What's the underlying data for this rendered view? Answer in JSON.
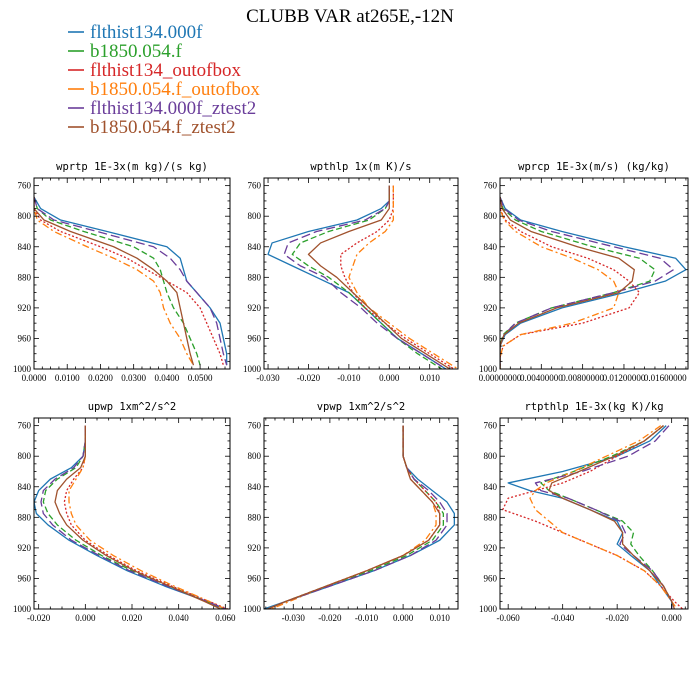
{
  "title": "CLUBB VAR at265E,-12N",
  "legend": [
    {
      "label": "flthist134.000f",
      "color": "#1f77b4",
      "dash": "solid"
    },
    {
      "label": "b1850.054.f",
      "color": "#2ca02c",
      "dash": "dashed"
    },
    {
      "label": "flthist134_outofbox",
      "color": "#d62728",
      "dash": "dotted"
    },
    {
      "label": "b1850.054.f_outofbox",
      "color": "#ff7f0e",
      "dash": "dashdot"
    },
    {
      "label": "flthist134.000f_ztest2",
      "color": "#6a3d9a",
      "dash": "longdash"
    },
    {
      "label": "b1850.054.f_ztest2",
      "color": "#a0522d",
      "dash": "solid"
    }
  ],
  "chart_data": [
    {
      "type": "line",
      "title": "wprtp  1E-3x(m kg)/(s kg)",
      "xlim": [
        0.0,
        0.059
      ],
      "ylim": [
        1000,
        750
      ],
      "yticks": [
        760,
        800,
        840,
        880,
        920,
        960,
        1000
      ],
      "xticks": [
        0.0,
        0.01,
        0.02,
        0.03,
        0.04,
        0.05
      ],
      "xticklabels": [
        "0.0000",
        "0.0100",
        "0.0200",
        "0.0300",
        "0.0400",
        "0.0500"
      ],
      "y": [
        775,
        790,
        805,
        820,
        840,
        855,
        870,
        885,
        900,
        920,
        940,
        960,
        980,
        995
      ],
      "series": [
        {
          "name": "flthist134.000f",
          "x": [
            0.0,
            0.002,
            0.008,
            0.022,
            0.04,
            0.044,
            0.045,
            0.046,
            0.049,
            0.053,
            0.056,
            0.057,
            0.058,
            0.058
          ]
        },
        {
          "name": "b1850.054.f",
          "x": [
            0.0,
            0.001,
            0.005,
            0.015,
            0.03,
            0.036,
            0.038,
            0.039,
            0.04,
            0.042,
            0.045,
            0.047,
            0.049,
            0.05
          ]
        },
        {
          "name": "flthist134_outofbox",
          "x": [
            0.0,
            0.0,
            0.002,
            0.008,
            0.02,
            0.028,
            0.034,
            0.04,
            0.046,
            0.05,
            0.052,
            0.054,
            0.056,
            0.057
          ]
        },
        {
          "name": "b1850.054.f_outofbox",
          "x": [
            0.0,
            0.0,
            0.001,
            0.006,
            0.016,
            0.024,
            0.031,
            0.036,
            0.038,
            0.039,
            0.041,
            0.044,
            0.046,
            0.048
          ]
        },
        {
          "name": "flthist134.000f_ztest2",
          "x": [
            0.0,
            0.001,
            0.006,
            0.019,
            0.036,
            0.041,
            0.044,
            0.046,
            0.049,
            0.053,
            0.055,
            0.056,
            0.057,
            0.058
          ]
        },
        {
          "name": "b1850.054.f_ztest2",
          "x": [
            0.0,
            0.0,
            0.003,
            0.011,
            0.024,
            0.031,
            0.036,
            0.04,
            0.043,
            0.044,
            0.045,
            0.046,
            0.047,
            0.048
          ]
        }
      ]
    },
    {
      "type": "line",
      "title": "wpthlp  1x(m K)/s",
      "xlim": [
        -0.031,
        0.017
      ],
      "ylim": [
        1000,
        750
      ],
      "yticks": [
        760,
        800,
        840,
        880,
        920,
        960,
        1000
      ],
      "xticks": [
        -0.03,
        -0.02,
        -0.01,
        0.0,
        0.01
      ],
      "xticklabels": [
        "-0.030",
        "-0.020",
        "-0.010",
        "0.000",
        "0.010"
      ],
      "y": [
        760,
        780,
        790,
        805,
        820,
        835,
        850,
        865,
        880,
        900,
        920,
        940,
        960,
        980,
        1000
      ],
      "series": [
        {
          "name": "flthist134.000f",
          "x": [
            0.0,
            0.0,
            -0.002,
            -0.008,
            -0.02,
            -0.029,
            -0.03,
            -0.024,
            -0.018,
            -0.01,
            -0.006,
            -0.002,
            0.002,
            0.008,
            0.014
          ]
        },
        {
          "name": "b1850.054.f",
          "x": [
            0.0,
            0.0,
            -0.001,
            -0.005,
            -0.015,
            -0.022,
            -0.024,
            -0.02,
            -0.015,
            -0.01,
            -0.006,
            -0.002,
            0.002,
            0.007,
            0.013
          ]
        },
        {
          "name": "flthist134_outofbox",
          "x": [
            0.001,
            0.001,
            0.001,
            0.0,
            -0.003,
            -0.008,
            -0.012,
            -0.012,
            -0.011,
            -0.009,
            -0.006,
            -0.001,
            0.004,
            0.01,
            0.016
          ]
        },
        {
          "name": "b1850.054.f_outofbox",
          "x": [
            0.001,
            0.001,
            0.001,
            0.001,
            -0.001,
            -0.005,
            -0.008,
            -0.009,
            -0.01,
            -0.008,
            -0.005,
            0.0,
            0.005,
            0.011,
            0.017
          ]
        },
        {
          "name": "flthist134.000f_ztest2",
          "x": [
            0.0,
            0.0,
            -0.001,
            -0.006,
            -0.018,
            -0.025,
            -0.026,
            -0.022,
            -0.016,
            -0.012,
            -0.007,
            -0.003,
            0.002,
            0.008,
            0.014
          ]
        },
        {
          "name": "b1850.054.f_ztest2",
          "x": [
            0.0,
            0.0,
            0.0,
            -0.002,
            -0.01,
            -0.017,
            -0.02,
            -0.017,
            -0.013,
            -0.009,
            -0.005,
            -0.001,
            0.003,
            0.009,
            0.015
          ]
        }
      ]
    },
    {
      "type": "line",
      "title": "wprcp  1E-3x(m/s) (kg/kg)",
      "xlim": [
        0.0,
        0.0182
      ],
      "ylim": [
        1000,
        750
      ],
      "yticks": [
        760,
        800,
        840,
        880,
        920,
        960,
        1000
      ],
      "xticks": [
        0.0,
        0.004,
        0.008,
        0.012,
        0.016
      ],
      "xticklabels": [
        "0.00000000",
        "0.00400000",
        "0.00800000",
        "0.01200000",
        "0.01600000"
      ],
      "y": [
        775,
        790,
        805,
        820,
        840,
        855,
        870,
        885,
        900,
        920,
        940,
        955,
        970,
        985,
        1000
      ],
      "series": [
        {
          "name": "flthist134.000f",
          "x": [
            0.0,
            0.0005,
            0.002,
            0.006,
            0.012,
            0.017,
            0.018,
            0.016,
            0.012,
            0.006,
            0.002,
            0.0005,
            0.0,
            0.0,
            0.0
          ]
        },
        {
          "name": "b1850.054.f",
          "x": [
            0.0,
            0.0003,
            0.0015,
            0.004,
            0.009,
            0.0135,
            0.015,
            0.0145,
            0.011,
            0.005,
            0.0015,
            0.0003,
            0.0,
            0.0,
            0.0
          ]
        },
        {
          "name": "flthist134_outofbox",
          "x": [
            0.0,
            0.0,
            0.0005,
            0.002,
            0.005,
            0.0085,
            0.011,
            0.0125,
            0.0135,
            0.0125,
            0.008,
            0.002,
            0.0003,
            0.0,
            0.0
          ]
        },
        {
          "name": "b1850.054.f_outofbox",
          "x": [
            0.0,
            0.0,
            0.0004,
            0.0015,
            0.004,
            0.007,
            0.0095,
            0.011,
            0.0115,
            0.011,
            0.007,
            0.002,
            0.0003,
            0.0,
            0.0
          ]
        },
        {
          "name": "flthist134.000f_ztest2",
          "x": [
            0.0,
            0.0004,
            0.0018,
            0.005,
            0.011,
            0.0155,
            0.0168,
            0.015,
            0.011,
            0.005,
            0.0015,
            0.0004,
            0.0,
            0.0,
            0.0
          ]
        },
        {
          "name": "b1850.054.f_ztest2",
          "x": [
            0.0,
            0.0002,
            0.001,
            0.003,
            0.0075,
            0.0115,
            0.013,
            0.0128,
            0.0115,
            0.0055,
            0.0018,
            0.0004,
            0.0,
            0.0,
            0.0
          ]
        }
      ]
    },
    {
      "type": "line",
      "title": "upwp   1xm^2/s^2",
      "xlim": [
        -0.022,
        0.062
      ],
      "ylim": [
        1000,
        750
      ],
      "yticks": [
        760,
        800,
        840,
        880,
        920,
        960,
        1000
      ],
      "xticks": [
        -0.02,
        0.0,
        0.02,
        0.04,
        0.06
      ],
      "xticklabels": [
        "-0.020",
        "0.000",
        "0.020",
        "0.040",
        "0.060"
      ],
      "y": [
        760,
        780,
        800,
        815,
        830,
        845,
        860,
        875,
        890,
        910,
        930,
        950,
        970,
        990,
        1000
      ],
      "series": [
        {
          "name": "flthist134.000f",
          "x": [
            0.0,
            0.0,
            -0.001,
            -0.006,
            -0.015,
            -0.02,
            -0.022,
            -0.021,
            -0.016,
            -0.007,
            0.005,
            0.018,
            0.034,
            0.052,
            0.06
          ]
        },
        {
          "name": "b1850.054.f",
          "x": [
            0.0,
            0.0,
            -0.001,
            -0.004,
            -0.012,
            -0.017,
            -0.018,
            -0.016,
            -0.012,
            -0.004,
            0.007,
            0.02,
            0.036,
            0.052,
            0.059
          ]
        },
        {
          "name": "flthist134_outofbox",
          "x": [
            0.0,
            0.0,
            0.0,
            -0.001,
            -0.005,
            -0.008,
            -0.009,
            -0.008,
            -0.006,
            0.0,
            0.01,
            0.022,
            0.037,
            0.053,
            0.061
          ]
        },
        {
          "name": "b1850.054.f_outofbox",
          "x": [
            0.0,
            0.0,
            0.0,
            -0.001,
            -0.004,
            -0.007,
            -0.007,
            -0.006,
            -0.004,
            0.002,
            0.012,
            0.024,
            0.038,
            0.053,
            0.06
          ]
        },
        {
          "name": "flthist134.000f_ztest2",
          "x": [
            0.0,
            0.0,
            -0.001,
            -0.005,
            -0.013,
            -0.018,
            -0.019,
            -0.018,
            -0.014,
            -0.006,
            0.006,
            0.019,
            0.035,
            0.052,
            0.06
          ]
        },
        {
          "name": "b1850.054.f_ztest2",
          "x": [
            0.0,
            0.0,
            0.0,
            -0.002,
            -0.008,
            -0.012,
            -0.013,
            -0.011,
            -0.008,
            -0.001,
            0.009,
            0.021,
            0.036,
            0.051,
            0.058
          ]
        }
      ]
    },
    {
      "type": "line",
      "title": "vpwp   1xm^2/s^2",
      "xlim": [
        -0.038,
        0.015
      ],
      "ylim": [
        1000,
        750
      ],
      "yticks": [
        760,
        800,
        840,
        880,
        920,
        960,
        1000
      ],
      "xticks": [
        -0.03,
        -0.02,
        -0.01,
        0.0,
        0.01
      ],
      "xticklabels": [
        "-0.030",
        "-0.020",
        "-0.010",
        "0.000",
        "0.010"
      ],
      "y": [
        760,
        780,
        800,
        815,
        830,
        845,
        860,
        875,
        890,
        910,
        930,
        950,
        970,
        990,
        1000
      ],
      "series": [
        {
          "name": "flthist134.000f",
          "x": [
            0.0,
            0.0,
            0.0,
            0.001,
            0.004,
            0.008,
            0.012,
            0.014,
            0.014,
            0.01,
            0.002,
            -0.008,
            -0.02,
            -0.032,
            -0.038
          ]
        },
        {
          "name": "b1850.054.f",
          "x": [
            0.0,
            0.0,
            0.0,
            0.001,
            0.003,
            0.006,
            0.009,
            0.011,
            0.011,
            0.008,
            0.001,
            -0.009,
            -0.021,
            -0.032,
            -0.037
          ]
        },
        {
          "name": "flthist134_outofbox",
          "x": [
            0.0,
            0.0,
            0.0,
            0.001,
            0.003,
            0.006,
            0.009,
            0.01,
            0.01,
            0.007,
            0.0,
            -0.01,
            -0.021,
            -0.032,
            -0.037
          ]
        },
        {
          "name": "b1850.054.f_outofbox",
          "x": [
            0.0,
            0.0,
            0.0,
            0.001,
            0.002,
            0.005,
            0.008,
            0.009,
            0.009,
            0.006,
            0.0,
            -0.01,
            -0.021,
            -0.031,
            -0.036
          ]
        },
        {
          "name": "flthist134.000f_ztest2",
          "x": [
            0.0,
            0.0,
            0.0,
            0.001,
            0.003,
            0.007,
            0.01,
            0.012,
            0.012,
            0.009,
            0.002,
            -0.008,
            -0.02,
            -0.032,
            -0.037
          ]
        },
        {
          "name": "b1850.054.f_ztest2",
          "x": [
            0.0,
            0.0,
            0.0,
            0.001,
            0.002,
            0.005,
            0.008,
            0.01,
            0.01,
            0.007,
            0.0,
            -0.01,
            -0.021,
            -0.032,
            -0.037
          ]
        }
      ]
    },
    {
      "type": "line",
      "title": "rtpthlp  1E-3x(kg K)/kg",
      "xlim": [
        -0.063,
        0.006
      ],
      "ylim": [
        1000,
        750
      ],
      "yticks": [
        760,
        800,
        840,
        880,
        920,
        960,
        1000
      ],
      "xticks": [
        -0.06,
        -0.04,
        -0.02,
        0.0
      ],
      "xticklabels": [
        "-0.060",
        "-0.040",
        "-0.020",
        "0.000"
      ],
      "y": [
        760,
        780,
        800,
        820,
        835,
        845,
        855,
        870,
        885,
        900,
        915,
        930,
        950,
        970,
        990,
        1000
      ],
      "series": [
        {
          "name": "flthist134.000f",
          "x": [
            -0.002,
            -0.008,
            -0.02,
            -0.04,
            -0.06,
            -0.052,
            -0.04,
            -0.03,
            -0.02,
            -0.018,
            -0.02,
            -0.015,
            -0.008,
            -0.004,
            0.0,
            0.0
          ]
        },
        {
          "name": "b1850.054.f",
          "x": [
            -0.003,
            -0.01,
            -0.022,
            -0.036,
            -0.048,
            -0.045,
            -0.038,
            -0.028,
            -0.018,
            -0.014,
            -0.015,
            -0.012,
            -0.007,
            -0.003,
            0.0,
            0.001
          ]
        },
        {
          "name": "flthist134_outofbox",
          "x": [
            -0.003,
            -0.01,
            -0.02,
            -0.03,
            -0.04,
            -0.05,
            -0.06,
            -0.062,
            -0.05,
            -0.04,
            -0.03,
            -0.02,
            -0.01,
            -0.004,
            0.001,
            0.004
          ]
        },
        {
          "name": "b1850.054.f_outofbox",
          "x": [
            -0.004,
            -0.012,
            -0.024,
            -0.036,
            -0.046,
            -0.05,
            -0.052,
            -0.05,
            -0.045,
            -0.04,
            -0.03,
            -0.02,
            -0.01,
            -0.004,
            0.0,
            0.002
          ]
        },
        {
          "name": "flthist134.000f_ztest2",
          "x": [
            -0.001,
            -0.006,
            -0.016,
            -0.033,
            -0.05,
            -0.048,
            -0.038,
            -0.028,
            -0.019,
            -0.017,
            -0.019,
            -0.014,
            -0.007,
            -0.003,
            0.0,
            0.0
          ]
        },
        {
          "name": "b1850.054.f_ztest2",
          "x": [
            -0.003,
            -0.01,
            -0.021,
            -0.034,
            -0.044,
            -0.045,
            -0.04,
            -0.03,
            -0.021,
            -0.018,
            -0.018,
            -0.014,
            -0.008,
            -0.003,
            0.0,
            0.001
          ]
        }
      ]
    }
  ]
}
